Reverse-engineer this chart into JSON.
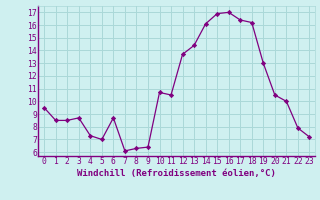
{
  "x": [
    0,
    1,
    2,
    3,
    4,
    5,
    6,
    7,
    8,
    9,
    10,
    11,
    12,
    13,
    14,
    15,
    16,
    17,
    18,
    19,
    20,
    21,
    22,
    23
  ],
  "y": [
    9.5,
    8.5,
    8.5,
    8.7,
    7.3,
    7.0,
    8.7,
    6.1,
    6.3,
    6.4,
    10.7,
    10.5,
    13.7,
    14.4,
    16.1,
    16.9,
    17.0,
    16.4,
    16.2,
    13.0,
    10.5,
    10.0,
    7.9,
    7.2
  ],
  "line_color": "#800080",
  "marker": "D",
  "marker_size": 2.2,
  "bg_color": "#cff0f0",
  "grid_color": "#aad8d8",
  "xlabel": "Windchill (Refroidissement éolien,°C)",
  "ylim": [
    5.7,
    17.5
  ],
  "xlim": [
    -0.5,
    23.5
  ],
  "yticks": [
    6,
    7,
    8,
    9,
    10,
    11,
    12,
    13,
    14,
    15,
    16,
    17
  ],
  "xticks": [
    0,
    1,
    2,
    3,
    4,
    5,
    6,
    7,
    8,
    9,
    10,
    11,
    12,
    13,
    14,
    15,
    16,
    17,
    18,
    19,
    20,
    21,
    22,
    23
  ],
  "tick_color": "#800080",
  "label_color": "#800080",
  "xlabel_fontsize": 6.5,
  "tick_fontsize": 5.8,
  "linewidth": 0.9
}
